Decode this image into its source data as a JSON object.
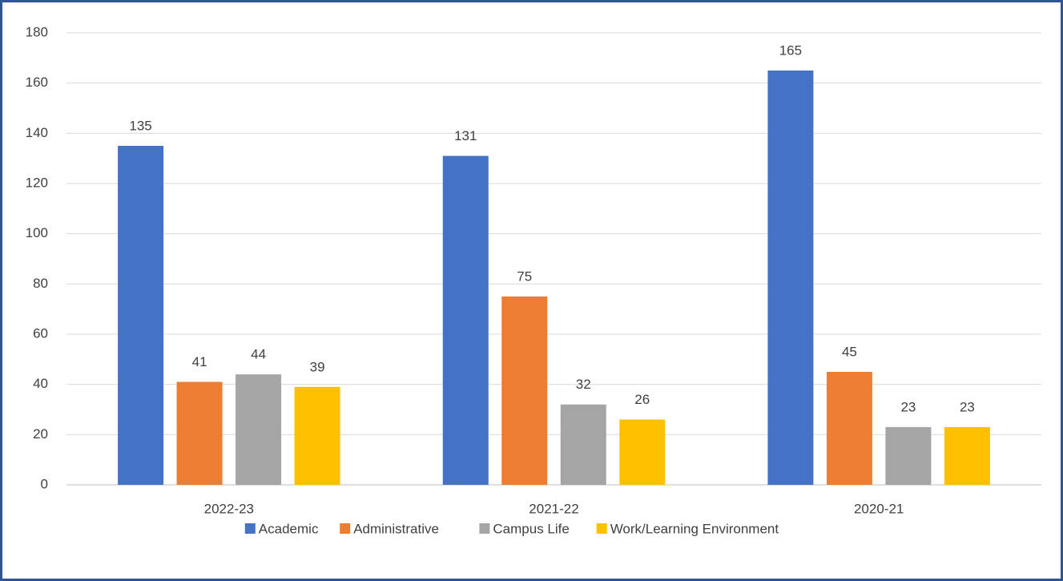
{
  "chart_data": {
    "type": "bar",
    "categories": [
      "2022-23",
      "2021-22",
      "2020-21"
    ],
    "series": [
      {
        "name": "Academic",
        "color": "#4472c4",
        "values": [
          135,
          131,
          165
        ]
      },
      {
        "name": "Administrative",
        "color": "#ed7d31",
        "values": [
          41,
          75,
          45
        ]
      },
      {
        "name": "Campus Life",
        "color": "#a5a5a5",
        "values": [
          44,
          32,
          23
        ]
      },
      {
        "name": "Work/Learning Environment",
        "color": "#ffc000",
        "values": [
          39,
          26,
          23
        ]
      }
    ],
    "ylim": [
      0,
      180
    ],
    "yticks": [
      0,
      20,
      40,
      60,
      80,
      100,
      120,
      140,
      160,
      180
    ],
    "grid": true,
    "legend": "bottom"
  }
}
